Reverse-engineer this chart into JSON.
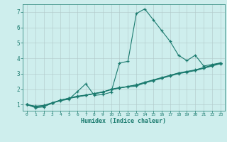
{
  "xlabel": "Humidex (Indice chaleur)",
  "xlim": [
    -0.5,
    23.5
  ],
  "ylim": [
    0.6,
    7.5
  ],
  "xticks": [
    0,
    1,
    2,
    3,
    4,
    5,
    6,
    7,
    8,
    9,
    10,
    11,
    12,
    13,
    14,
    15,
    16,
    17,
    18,
    19,
    20,
    21,
    22,
    23
  ],
  "yticks": [
    1,
    2,
    3,
    4,
    5,
    6,
    7
  ],
  "bg_color": "#ceeeed",
  "grid_color": "#b0c8c8",
  "line_color": "#1a7a6e",
  "series": [
    {
      "x": [
        0,
        1,
        2,
        3,
        4,
        5,
        6,
        7,
        8,
        9,
        10,
        11,
        12,
        13,
        14,
        15,
        16,
        17,
        18,
        19,
        20,
        21,
        22,
        23
      ],
      "y": [
        1.0,
        0.8,
        0.85,
        1.1,
        1.25,
        1.35,
        1.85,
        2.35,
        1.6,
        1.65,
        1.8,
        3.7,
        3.8,
        6.9,
        7.2,
        6.5,
        5.8,
        5.1,
        4.2,
        3.85,
        4.2,
        3.5,
        3.6,
        3.7
      ]
    },
    {
      "x": [
        0,
        1,
        2,
        3,
        4,
        5,
        6,
        7,
        8,
        9,
        10,
        11,
        12,
        13,
        14,
        15,
        16,
        17,
        18,
        19,
        20,
        21,
        22,
        23
      ],
      "y": [
        1.0,
        0.85,
        0.9,
        1.1,
        1.3,
        1.4,
        1.5,
        1.6,
        1.7,
        1.8,
        2.0,
        2.1,
        2.15,
        2.2,
        2.4,
        2.55,
        2.7,
        2.85,
        3.0,
        3.1,
        3.2,
        3.35,
        3.5,
        3.65
      ]
    },
    {
      "x": [
        0,
        1,
        2,
        3,
        4,
        5,
        6,
        7,
        8,
        9,
        10,
        11,
        12,
        13,
        14,
        15,
        16,
        17,
        18,
        19,
        20,
        21,
        22,
        23
      ],
      "y": [
        1.0,
        0.9,
        0.95,
        1.12,
        1.28,
        1.42,
        1.55,
        1.62,
        1.72,
        1.82,
        1.98,
        2.08,
        2.18,
        2.28,
        2.45,
        2.6,
        2.75,
        2.9,
        3.05,
        3.15,
        3.25,
        3.4,
        3.55,
        3.7
      ]
    },
    {
      "x": [
        0,
        1,
        2,
        3,
        4,
        5,
        6,
        7,
        8,
        9,
        10,
        11,
        12,
        13,
        14,
        15,
        16,
        17,
        18,
        19,
        20,
        21,
        22,
        23
      ],
      "y": [
        1.0,
        0.88,
        0.92,
        1.11,
        1.27,
        1.41,
        1.52,
        1.6,
        1.71,
        1.81,
        1.97,
        2.07,
        2.17,
        2.27,
        2.43,
        2.58,
        2.73,
        2.88,
        3.03,
        3.13,
        3.23,
        3.38,
        3.53,
        3.68
      ]
    }
  ]
}
